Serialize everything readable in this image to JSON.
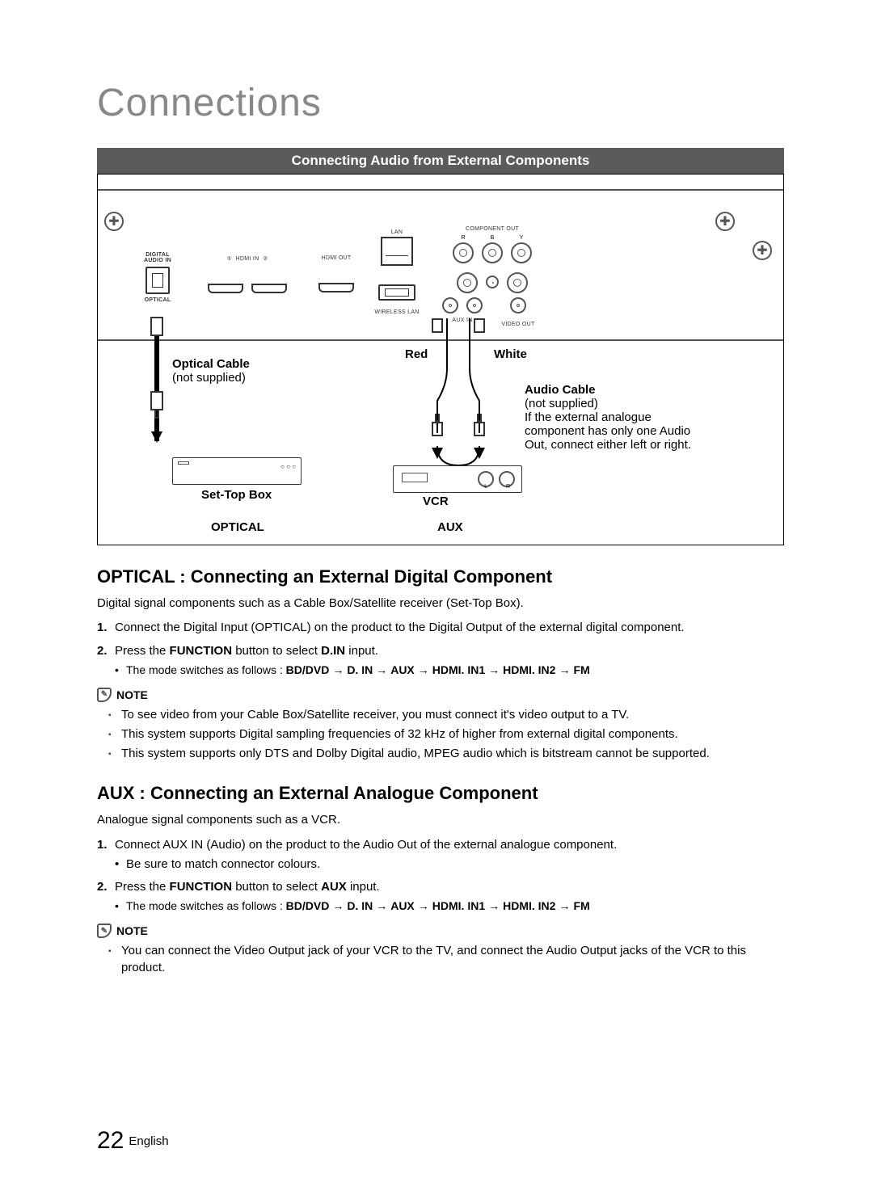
{
  "page": {
    "title": "Connections",
    "banner": "Connecting Audio from External Components",
    "footer_page": "22",
    "footer_lang": "English"
  },
  "panel_labels": {
    "digital_audio_in": "DIGITAL\nAUDIO IN",
    "optical": "OPTICAL",
    "hdmi_in": "HDMI IN",
    "hdmi_in_1": "①",
    "hdmi_in_2": "②",
    "hdmi_out": "HDMI OUT",
    "lan": "LAN",
    "wireless_lan": "WIRELESS LAN",
    "component_out": "COMPONENT OUT",
    "aux_in": "AUX IN",
    "video_out": "VIDEO OUT",
    "r": "R",
    "b": "B",
    "y": "Y",
    "l": "L"
  },
  "diagram": {
    "optical_cable": "Optical Cable",
    "not_supplied": "(not supplied)",
    "settop": "Set-Top Box",
    "optical_section": "OPTICAL",
    "red": "Red",
    "white": "White",
    "vcr": "VCR",
    "audio_cable": "Audio Cable",
    "audio_cable_note": "If the external analogue component has only one Audio Out, connect either left or right.",
    "aux_section": "AUX"
  },
  "optical": {
    "heading": "OPTICAL : Connecting an External Digital Component",
    "intro": "Digital signal components such as a Cable Box/Satellite receiver (Set-Top Box).",
    "step1": "Connect the Digital Input (OPTICAL) on the product to the Digital Output of the external digital component.",
    "step2_pre": "Press the ",
    "step2_btn": "FUNCTION",
    "step2_mid": " button to select ",
    "step2_val": "D.IN",
    "step2_post": " input.",
    "mode_intro": "The mode switches as follows : ",
    "modes": [
      "BD/DVD",
      "D. IN",
      "AUX",
      "HDMI. IN1",
      "HDMI. IN2",
      "FM"
    ],
    "note_label": "NOTE",
    "notes": [
      "To see video from your Cable Box/Satellite receiver, you must connect it's video output to a TV.",
      "This system supports Digital sampling frequencies of 32 kHz of higher from external digital components.",
      "This system supports only DTS and Dolby Digital audio, MPEG audio which is bitstream cannot be supported."
    ]
  },
  "aux": {
    "heading": "AUX : Connecting an External Analogue Component",
    "intro": "Analogue signal components such as a VCR.",
    "step1": "Connect AUX IN (Audio) on the product to the Audio Out of the external analogue component.",
    "step1_sub": "Be sure to match connector colours.",
    "step2_pre": "Press the ",
    "step2_btn": "FUNCTION",
    "step2_mid": " button to select ",
    "step2_val": "AUX",
    "step2_post": " input.",
    "mode_intro": "The mode switches as follows : ",
    "modes": [
      "BD/DVD",
      "D. IN",
      "AUX",
      "HDMI. IN1",
      "HDMI. IN2",
      "FM"
    ],
    "note_label": "NOTE",
    "notes": [
      "You can connect the Video Output jack of your VCR to the TV, and connect the Audio Output jacks of the VCR to this product."
    ]
  }
}
